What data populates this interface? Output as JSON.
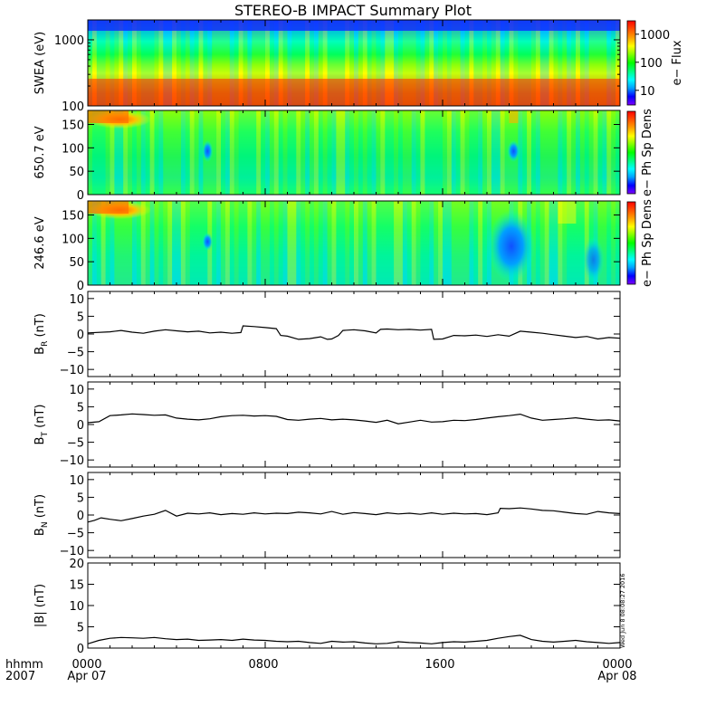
{
  "title": "STEREO-B IMPACT Summary Plot",
  "timestamp_note": "Wed Jun  8 08:08:27 2016",
  "x_axis": {
    "row_labels": [
      "hhmm",
      "2007"
    ],
    "ticks": [
      {
        "time": "0000",
        "date": "Apr 07",
        "hour": 0
      },
      {
        "time": "0800",
        "date": "",
        "hour": 8
      },
      {
        "time": "1600",
        "date": "",
        "hour": 16
      },
      {
        "time": "0000",
        "date": "Apr 08",
        "hour": 24
      }
    ],
    "range_hours": [
      0,
      24
    ]
  },
  "colors": {
    "colormap": [
      "#7f00ff",
      "#0000ff",
      "#00a0ff",
      "#00ffff",
      "#00ff80",
      "#00ff00",
      "#80ff00",
      "#ffff00",
      "#ffa000",
      "#ff5000",
      "#ff0000"
    ],
    "line": "#000000"
  },
  "chart_data": [
    {
      "type": "heatmap",
      "ylabel": "SWEA (eV)",
      "ylabel_parts": [
        "SWEA",
        "(eV)"
      ],
      "yscale": "log",
      "ylim": [
        100,
        2000
      ],
      "yticks": [
        {
          "value": 100,
          "label": "100"
        },
        {
          "value": 1000,
          "label": "1000"
        }
      ],
      "colorbar": {
        "label": "e− Flux",
        "scale": "log",
        "range": [
          3,
          3000
        ],
        "ticks": [
          {
            "value": 10,
            "label": "10"
          },
          {
            "value": 100,
            "label": "100"
          },
          {
            "value": 1000,
            "label": "1000"
          }
        ]
      }
    },
    {
      "type": "heatmap",
      "ylabel": "650.7 eV",
      "ylim": [
        0,
        180
      ],
      "yticks": [
        {
          "value": 0,
          "label": "0"
        },
        {
          "value": 50,
          "label": "50"
        },
        {
          "value": 100,
          "label": "100"
        },
        {
          "value": 150,
          "label": "150"
        }
      ],
      "colorbar": {
        "label": "e− Ph Sp Dens"
      }
    },
    {
      "type": "heatmap",
      "ylabel": "246.6 eV",
      "ylim": [
        0,
        180
      ],
      "yticks": [
        {
          "value": 0,
          "label": "0"
        },
        {
          "value": 50,
          "label": "50"
        },
        {
          "value": 100,
          "label": "100"
        },
        {
          "value": 150,
          "label": "150"
        }
      ],
      "colorbar": {
        "label": "e− Ph Sp Dens"
      }
    },
    {
      "type": "line",
      "ylabel": "BR (nT)",
      "ylabel_main": "B",
      "ylabel_sub": "R",
      "ylabel_unit": " (nT)",
      "ylim": [
        -12,
        12
      ],
      "yticks": [
        {
          "value": -10,
          "label": "−10"
        },
        {
          "value": -5,
          "label": "−5"
        },
        {
          "value": 0,
          "label": "0"
        },
        {
          "value": 5,
          "label": "5"
        },
        {
          "value": 10,
          "label": "10"
        }
      ],
      "x": [
        0,
        1,
        1.5,
        2,
        2.5,
        3,
        3.5,
        4,
        4.5,
        5,
        5.5,
        6,
        6.5,
        6.9,
        7,
        7.5,
        8,
        8.5,
        8.7,
        9,
        9.5,
        10,
        10.5,
        10.8,
        11,
        11.3,
        11.5,
        12,
        12.5,
        13,
        13.2,
        13.5,
        14,
        14.5,
        15,
        15.5,
        15.6,
        16,
        16.5,
        17,
        17.5,
        18,
        18.5,
        19,
        19.5,
        20,
        20.5,
        21,
        21.5,
        22,
        22.5,
        23,
        23.5,
        24
      ],
      "y": [
        0.3,
        0.6,
        1.0,
        0.5,
        0.2,
        0.8,
        1.2,
        0.9,
        0.6,
        0.8,
        0.3,
        0.5,
        0.2,
        0.4,
        2.3,
        2.1,
        1.8,
        1.5,
        -0.4,
        -0.6,
        -1.5,
        -1.3,
        -0.8,
        -1.5,
        -1.4,
        -0.4,
        1.0,
        1.2,
        0.9,
        0.3,
        1.3,
        1.4,
        1.2,
        1.3,
        1.1,
        1.3,
        -1.5,
        -1.4,
        -0.4,
        -0.5,
        -0.3,
        -0.7,
        -0.2,
        -0.6,
        0.8,
        0.5,
        0.2,
        -0.2,
        -0.6,
        -1.0,
        -0.7,
        -1.4,
        -1.0,
        -1.2
      ]
    },
    {
      "type": "line",
      "ylabel": "BT (nT)",
      "ylabel_main": "B",
      "ylabel_sub": "T",
      "ylabel_unit": " (nT)",
      "ylim": [
        -12,
        12
      ],
      "yticks": [
        {
          "value": -10,
          "label": "−10"
        },
        {
          "value": -5,
          "label": "−5"
        },
        {
          "value": 0,
          "label": "0"
        },
        {
          "value": 5,
          "label": "5"
        },
        {
          "value": 10,
          "label": "10"
        }
      ],
      "x": [
        0,
        0.5,
        1,
        1.5,
        2,
        2.5,
        3,
        3.5,
        4,
        4.5,
        5,
        5.5,
        6,
        6.5,
        7,
        7.5,
        8,
        8.5,
        9,
        9.5,
        10,
        10.5,
        11,
        11.5,
        12,
        12.5,
        13,
        13.5,
        14,
        14.5,
        15,
        15.5,
        16,
        16.5,
        17,
        17.5,
        18,
        18.5,
        19,
        19.5,
        20,
        20.5,
        21,
        21.5,
        22,
        22.5,
        23,
        23.5,
        24
      ],
      "y": [
        0.5,
        0.8,
        2.5,
        2.7,
        3.0,
        2.8,
        2.6,
        2.7,
        1.8,
        1.5,
        1.3,
        1.6,
        2.2,
        2.5,
        2.6,
        2.4,
        2.5,
        2.3,
        1.4,
        1.2,
        1.5,
        1.7,
        1.3,
        1.5,
        1.3,
        1.0,
        0.6,
        1.2,
        0.2,
        0.7,
        1.2,
        0.7,
        0.8,
        1.2,
        1.1,
        1.4,
        1.8,
        2.2,
        2.5,
        2.9,
        1.8,
        1.2,
        1.4,
        1.6,
        1.9,
        1.5,
        1.2,
        1.3,
        1.0
      ]
    },
    {
      "type": "line",
      "ylabel": "BN (nT)",
      "ylabel_main": "B",
      "ylabel_sub": "N",
      "ylabel_unit": " (nT)",
      "ylim": [
        -12,
        12
      ],
      "yticks": [
        {
          "value": -10,
          "label": "−10"
        },
        {
          "value": -5,
          "label": "−5"
        },
        {
          "value": 0,
          "label": "0"
        },
        {
          "value": 5,
          "label": "5"
        },
        {
          "value": 10,
          "label": "10"
        }
      ],
      "x": [
        0,
        0.3,
        0.6,
        1,
        1.5,
        2,
        2.5,
        3,
        3.5,
        4,
        4.5,
        5,
        5.5,
        6,
        6.5,
        7,
        7.5,
        8,
        8.5,
        9,
        9.5,
        10,
        10.5,
        11,
        11.5,
        12,
        12.5,
        13,
        13.5,
        14,
        14.5,
        15,
        15.5,
        16,
        16.5,
        17,
        17.5,
        18,
        18.5,
        18.6,
        19,
        19.5,
        20,
        20.5,
        21,
        21.5,
        22,
        22.5,
        23,
        23.5,
        24
      ],
      "y": [
        -2.0,
        -1.5,
        -0.8,
        -1.2,
        -1.6,
        -1.0,
        -0.3,
        0.2,
        1.3,
        -0.3,
        0.5,
        0.3,
        0.6,
        0.1,
        0.4,
        0.2,
        0.6,
        0.3,
        0.5,
        0.4,
        0.8,
        0.6,
        0.3,
        1.0,
        0.2,
        0.7,
        0.4,
        0.1,
        0.6,
        0.3,
        0.5,
        0.2,
        0.6,
        0.2,
        0.5,
        0.3,
        0.4,
        0.1,
        0.6,
        1.9,
        1.8,
        2.0,
        1.7,
        1.3,
        1.2,
        0.8,
        0.4,
        0.2,
        1.0,
        0.6,
        0.4
      ]
    },
    {
      "type": "line",
      "ylabel": "|B| (nT)",
      "ylabel_main": "|B|",
      "ylabel_sub": "",
      "ylabel_unit": " (nT)",
      "ylim": [
        0,
        20
      ],
      "yticks": [
        {
          "value": 0,
          "label": "0"
        },
        {
          "value": 5,
          "label": "5"
        },
        {
          "value": 10,
          "label": "10"
        },
        {
          "value": 15,
          "label": "15"
        },
        {
          "value": 20,
          "label": "20"
        }
      ],
      "x": [
        0,
        0.5,
        1,
        1.5,
        2,
        2.5,
        3,
        3.5,
        4,
        4.5,
        5,
        5.5,
        6,
        6.5,
        7,
        7.5,
        8,
        8.5,
        9,
        9.5,
        10,
        10.5,
        11,
        11.5,
        12,
        12.5,
        13,
        13.5,
        14,
        14.5,
        15,
        15.5,
        16,
        16.5,
        17,
        17.5,
        18,
        18.5,
        19,
        19.5,
        20,
        20.5,
        21,
        21.5,
        22,
        22.5,
        23,
        23.5,
        24
      ],
      "y": [
        1.0,
        1.8,
        2.3,
        2.5,
        2.4,
        2.3,
        2.5,
        2.2,
        2.0,
        2.1,
        1.8,
        1.9,
        2.0,
        1.8,
        2.1,
        1.9,
        1.8,
        1.6,
        1.5,
        1.6,
        1.3,
        1.1,
        1.6,
        1.4,
        1.5,
        1.2,
        1.0,
        1.1,
        1.5,
        1.3,
        1.2,
        1.0,
        1.3,
        1.5,
        1.4,
        1.6,
        1.8,
        2.3,
        2.7,
        3.0,
        2.0,
        1.6,
        1.4,
        1.6,
        1.8,
        1.5,
        1.3,
        1.1,
        1.3
      ]
    }
  ]
}
